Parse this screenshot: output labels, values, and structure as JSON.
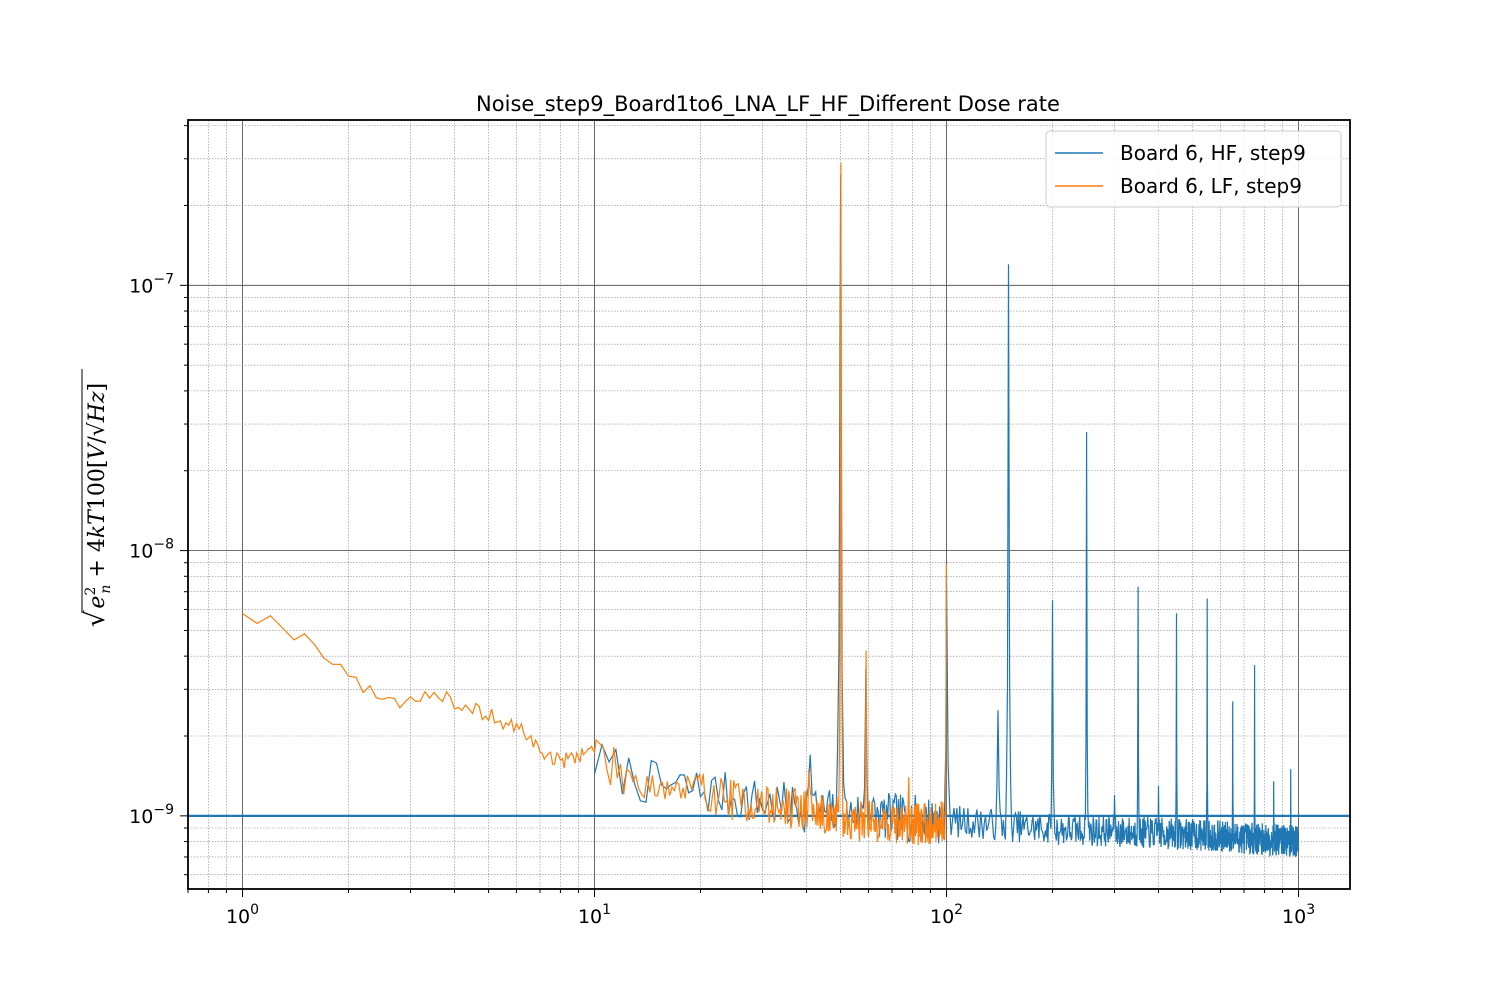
{
  "chart_data": {
    "type": "line",
    "title": "Noise_step9_Board1to6_LNA_LF_HF_Different Dose rate",
    "xlabel": "",
    "ylabel": "√(e_n² + 4kT100) [V/√Hz]",
    "x_scale": "log",
    "y_scale": "log",
    "xlim": [
      0.7,
      1400
    ],
    "ylim": [
      5.3e-10,
      4.2e-07
    ],
    "x_ticks": [
      1,
      10,
      100,
      1000
    ],
    "x_tick_labels": [
      "10^0",
      "10^1",
      "10^2",
      "10^3"
    ],
    "y_ticks": [
      1e-09,
      1e-08,
      1e-07
    ],
    "y_tick_labels": [
      "10^-9",
      "10^-8",
      "10^-7"
    ],
    "grid": true,
    "legend_position": "top-right",
    "reference_line": {
      "y": 1e-09,
      "color": "#1f77b4"
    },
    "series": [
      {
        "name": "Board 6, HF, step9",
        "color": "#1f77b4",
        "x_range": [
          10,
          1000
        ],
        "baseline": [
          [
            10,
            1.6e-09
          ],
          [
            15,
            1.3e-09
          ],
          [
            20,
            1.25e-09
          ],
          [
            30,
            1.12e-09
          ],
          [
            50,
            1.02e-09
          ],
          [
            100,
            9.6e-10
          ],
          [
            200,
            8.9e-10
          ],
          [
            500,
            8.5e-10
          ],
          [
            1000,
            8e-10
          ]
        ],
        "peaks": [
          {
            "x": 41,
            "y": 1.7e-09
          },
          {
            "x": 50,
            "y": 2.6e-07
          },
          {
            "x": 59,
            "y": 3.6e-09
          },
          {
            "x": 100,
            "y": 8e-09
          },
          {
            "x": 140,
            "y": 2.5e-09
          },
          {
            "x": 150,
            "y": 1.2e-07
          },
          {
            "x": 200,
            "y": 6.5e-09
          },
          {
            "x": 250,
            "y": 2.8e-08
          },
          {
            "x": 300,
            "y": 1.2e-09
          },
          {
            "x": 350,
            "y": 7.3e-09
          },
          {
            "x": 400,
            "y": 1.3e-09
          },
          {
            "x": 450,
            "y": 5.8e-09
          },
          {
            "x": 550,
            "y": 6.6e-09
          },
          {
            "x": 650,
            "y": 2.7e-09
          },
          {
            "x": 750,
            "y": 3.7e-09
          },
          {
            "x": 850,
            "y": 1.35e-09
          },
          {
            "x": 950,
            "y": 1.5e-09
          }
        ]
      },
      {
        "name": "Board 6, LF, step9",
        "color": "#ff7f0e",
        "x_range": [
          1,
          100
        ],
        "points": [
          [
            1.0,
            6e-09
          ],
          [
            1.3,
            5.2e-09
          ],
          [
            1.7,
            4.2e-09
          ],
          [
            2.0,
            3.4e-09
          ],
          [
            2.3,
            2.9e-09
          ],
          [
            2.6,
            2.75e-09
          ],
          [
            2.9,
            2.7e-09
          ],
          [
            3.3,
            2.9e-09
          ],
          [
            3.8,
            2.8e-09
          ],
          [
            4.1,
            2.4e-09
          ],
          [
            4.5,
            2.55e-09
          ],
          [
            5.0,
            2.4e-09
          ],
          [
            5.6,
            2.2e-09
          ],
          [
            6.3,
            2.1e-09
          ],
          [
            7.0,
            1.75e-09
          ],
          [
            8.0,
            1.6e-09
          ],
          [
            9.0,
            1.7e-09
          ],
          [
            10.0,
            1.8e-09
          ],
          [
            11.0,
            1.55e-09
          ],
          [
            12.0,
            1.45e-09
          ],
          [
            14.0,
            1.35e-09
          ],
          [
            17.0,
            1.25e-09
          ],
          [
            20.0,
            1.25e-09
          ],
          [
            25.0,
            1.15e-09
          ],
          [
            30.0,
            1.1e-09
          ],
          [
            40.0,
            1.05e-09
          ],
          [
            45.0,
            1e-09
          ],
          [
            55.0,
            9.6e-10
          ],
          [
            70.0,
            9.4e-10
          ],
          [
            85.0,
            9.3e-10
          ],
          [
            100.0,
            9.6e-10
          ]
        ],
        "peaks": [
          {
            "x": 40.5,
            "y": 1.5e-09
          },
          {
            "x": 50,
            "y": 2.9e-07
          },
          {
            "x": 59,
            "y": 4.2e-09
          },
          {
            "x": 78,
            "y": 1.4e-09
          },
          {
            "x": 100,
            "y": 8.9e-09
          }
        ]
      }
    ]
  }
}
